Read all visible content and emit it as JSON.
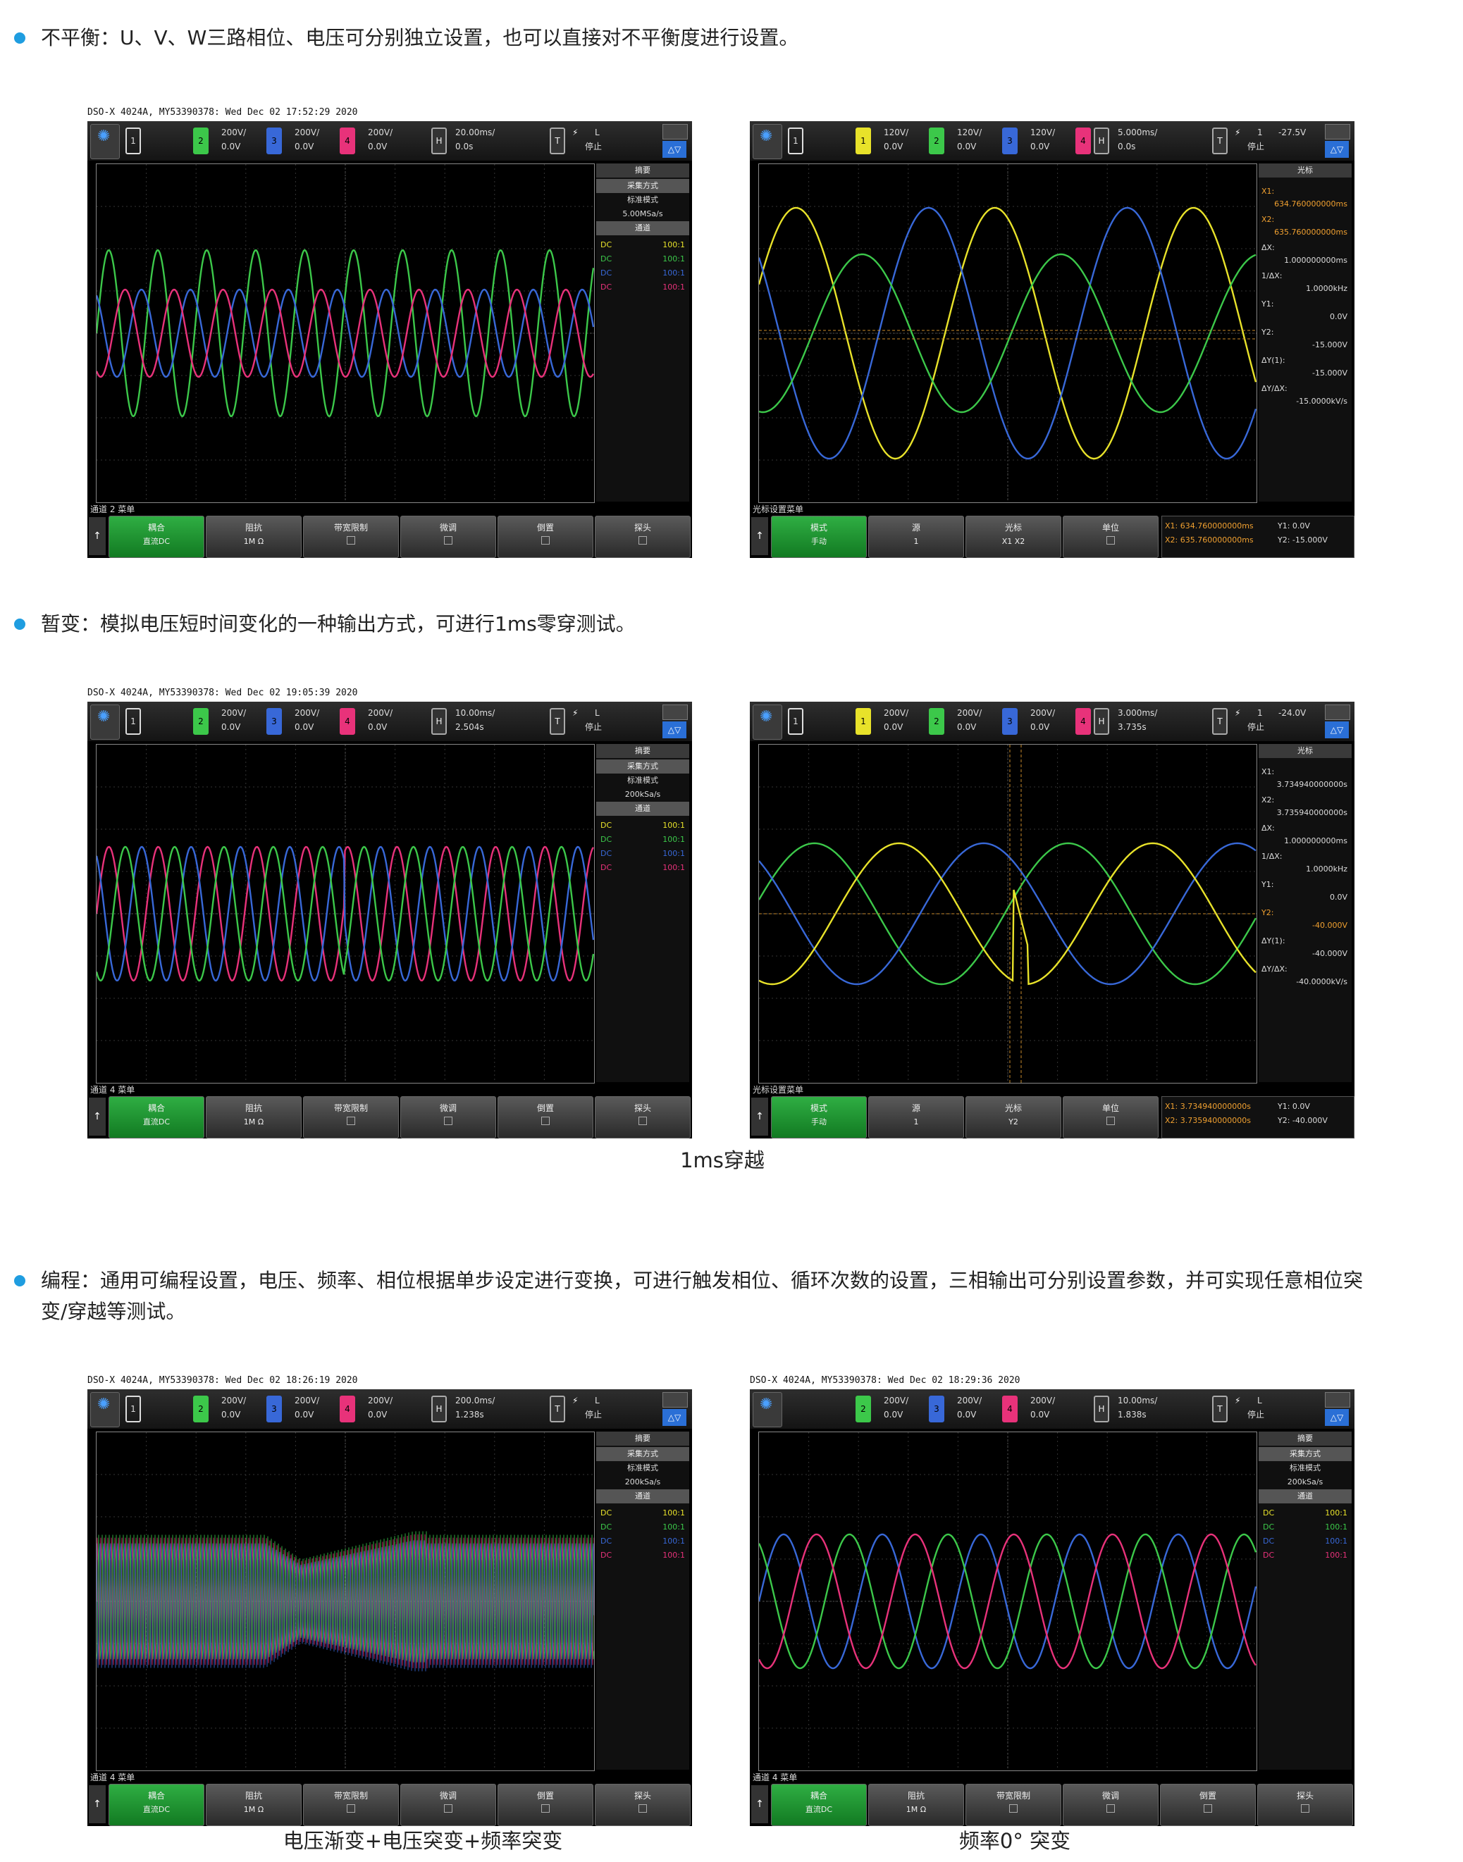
{
  "sections": [
    {
      "bullet": "不平衡：U、V、W三路相位、电压可分别独立设置，也可以直接对不平衡度进行设置。"
    },
    {
      "bullet": "暂变：模拟电压短时间变化的一种输出方式，可进行1ms零穿测试。",
      "caption": "1ms穿越"
    },
    {
      "bullet_line1": "编程：通用可编程设置，电压、频率、相位根据单步设定进行变换，可进行触发相位、循环次数的设置，三相输出可分别设置参数，并可实现任意相位突",
      "bullet_line2": "变/穿越等测试。",
      "caption_left": "电压渐变+电压突变+频率突变",
      "caption_right": "频率0° 突变"
    }
  ],
  "colors": {
    "yellow": "#e8e22a",
    "green": "#3cc84a",
    "blue": "#3868d8",
    "pink": "#e8327a",
    "bullet": "#1f9de0"
  },
  "scopes": [
    {
      "header": "DSO-X 4024A, MY53390378: Wed Dec 02 17:52:29 2020",
      "ch_first": "1",
      "channels": [
        {
          "num": "2",
          "scale": "200V/",
          "offset": "0.0V"
        },
        {
          "num": "3",
          "scale": "200V/",
          "offset": "0.0V"
        },
        {
          "num": "4",
          "scale": "200V/",
          "offset": "0.0V"
        }
      ],
      "timebase": {
        "scale": "20.00ms/",
        "offset": "0.0s"
      },
      "trig": {
        "t": "T",
        "mode": "L",
        "state": "停止"
      },
      "side_title": "摘要",
      "acq": [
        "采集方式",
        "标准模式",
        "5.00MSa/s",
        "通道"
      ],
      "dc": [
        {
          "label": "DC",
          "ratio": "100:1"
        },
        {
          "label": "DC",
          "ratio": "100:1"
        },
        {
          "label": "DC",
          "ratio": "100:1"
        },
        {
          "label": "DC",
          "ratio": "100:1"
        }
      ],
      "status": "通道 2 菜单",
      "buttons": [
        {
          "l1": "耦合",
          "l2": "直流DC"
        },
        {
          "l1": "阻抗",
          "l2": "1M Ω"
        },
        {
          "l1": "带宽限制",
          "l2": ""
        },
        {
          "l1": "微调",
          "l2": ""
        },
        {
          "l1": "倒置",
          "l2": ""
        },
        {
          "l1": "探头",
          "l2": ""
        }
      ]
    },
    {
      "header": "",
      "ch_first": "1",
      "channels": [
        {
          "num": "1",
          "scale": "120V/",
          "offset": "0.0V"
        },
        {
          "num": "2",
          "scale": "120V/",
          "offset": "0.0V"
        },
        {
          "num": "3",
          "scale": "120V/",
          "offset": "0.0V"
        },
        {
          "num": "4",
          "scale": "",
          "offset": ""
        }
      ],
      "timebase": {
        "scale": "5.000ms/",
        "offset": "0.0s"
      },
      "trig": {
        "t": "T",
        "mode": "1",
        "level": "-27.5V",
        "state": "停止"
      },
      "side_title": "光标",
      "cursors": [
        {
          "k": "X1:",
          "v": "634.760000000ms",
          "c": "orange"
        },
        {
          "k": "X2:",
          "v": "635.760000000ms",
          "c": "orange"
        },
        {
          "k": "ΔX:",
          "v": "1.000000000ms",
          "c": "white"
        },
        {
          "k": "1/ΔX:",
          "v": "1.0000kHz",
          "c": "white"
        },
        {
          "k": "Y1:",
          "v": "0.0V",
          "c": "white"
        },
        {
          "k": "Y2:",
          "v": "-15.000V",
          "c": "white"
        },
        {
          "k": "ΔY(1):",
          "v": "-15.000V",
          "c": "white"
        },
        {
          "k": "ΔY/ΔX:",
          "v": "-15.0000kV/s",
          "c": "white"
        }
      ],
      "status": "光标设置菜单",
      "buttons": [
        {
          "l1": "模式",
          "l2": "手动"
        },
        {
          "l1": "源",
          "l2": "1"
        },
        {
          "l1": "光标",
          "l2": "X1 X2"
        },
        {
          "l1": "单位",
          "l2": ""
        }
      ],
      "readout": {
        "x1": "X1: 634.760000000ms",
        "x2": "X2: 635.760000000ms",
        "y1": "Y1: 0.0V",
        "y2": "Y2: -15.000V"
      }
    },
    {
      "header": "DSO-X 4024A, MY53390378: Wed Dec 02 19:05:39 2020",
      "ch_first": "1",
      "channels": [
        {
          "num": "2",
          "scale": "200V/",
          "offset": "0.0V"
        },
        {
          "num": "3",
          "scale": "200V/",
          "offset": "0.0V"
        },
        {
          "num": "4",
          "scale": "200V/",
          "offset": "0.0V"
        }
      ],
      "timebase": {
        "scale": "10.00ms/",
        "offset": "2.504s"
      },
      "trig": {
        "t": "T",
        "mode": "L",
        "state": "停止"
      },
      "side_title": "摘要",
      "acq": [
        "采集方式",
        "标准模式",
        "200kSa/s",
        "通道"
      ],
      "dc": [
        {
          "label": "DC",
          "ratio": "100:1"
        },
        {
          "label": "DC",
          "ratio": "100:1"
        },
        {
          "label": "DC",
          "ratio": "100:1"
        },
        {
          "label": "DC",
          "ratio": "100:1"
        }
      ],
      "status": "通道 4 菜单",
      "buttons": [
        {
          "l1": "耦合",
          "l2": "直流DC"
        },
        {
          "l1": "阻抗",
          "l2": "1M Ω"
        },
        {
          "l1": "带宽限制",
          "l2": ""
        },
        {
          "l1": "微调",
          "l2": ""
        },
        {
          "l1": "倒置",
          "l2": ""
        },
        {
          "l1": "探头",
          "l2": ""
        }
      ]
    },
    {
      "header": "",
      "ch_first": "1",
      "channels": [
        {
          "num": "1",
          "scale": "200V/",
          "offset": "0.0V"
        },
        {
          "num": "2",
          "scale": "200V/",
          "offset": "0.0V"
        },
        {
          "num": "3",
          "scale": "200V/",
          "offset": "0.0V"
        },
        {
          "num": "4",
          "scale": "",
          "offset": ""
        }
      ],
      "timebase": {
        "scale": "3.000ms/",
        "offset": "3.735s"
      },
      "trig": {
        "t": "T",
        "mode": "1",
        "level": "-24.0V",
        "state": "停止"
      },
      "side_title": "光标",
      "cursors": [
        {
          "k": "X1:",
          "v": "3.734940000000s",
          "c": "white"
        },
        {
          "k": "X2:",
          "v": "3.735940000000s",
          "c": "white"
        },
        {
          "k": "ΔX:",
          "v": "1.000000000ms",
          "c": "white"
        },
        {
          "k": "1/ΔX:",
          "v": "1.0000kHz",
          "c": "white"
        },
        {
          "k": "Y1:",
          "v": "0.0V",
          "c": "white"
        },
        {
          "k": "Y2:",
          "v": "-40.000V",
          "c": "orange"
        },
        {
          "k": "ΔY(1):",
          "v": "-40.000V",
          "c": "white"
        },
        {
          "k": "ΔY/ΔX:",
          "v": "-40.0000kV/s",
          "c": "white"
        }
      ],
      "status": "光标设置菜单",
      "buttons": [
        {
          "l1": "模式",
          "l2": "手动"
        },
        {
          "l1": "源",
          "l2": "1"
        },
        {
          "l1": "光标",
          "l2": "Y2"
        },
        {
          "l1": "单位",
          "l2": ""
        }
      ],
      "readout": {
        "x1": "X1: 3.734940000000s",
        "x2": "X2: 3.735940000000s",
        "y1": "Y1: 0.0V",
        "y2": "Y2: -40.000V"
      }
    },
    {
      "header": "DSO-X 4024A, MY53390378: Wed Dec 02 18:26:19 2020",
      "ch_first": "1",
      "channels": [
        {
          "num": "2",
          "scale": "200V/",
          "offset": "0.0V"
        },
        {
          "num": "3",
          "scale": "200V/",
          "offset": "0.0V"
        },
        {
          "num": "4",
          "scale": "200V/",
          "offset": "0.0V"
        }
      ],
      "timebase": {
        "scale": "200.0ms/",
        "offset": "1.238s"
      },
      "trig": {
        "t": "T",
        "mode": "L",
        "state": "停止"
      },
      "side_title": "摘要",
      "acq": [
        "采集方式",
        "标准模式",
        "200kSa/s",
        "通道"
      ],
      "dc": [
        {
          "label": "DC",
          "ratio": "100:1"
        },
        {
          "label": "DC",
          "ratio": "100:1"
        },
        {
          "label": "DC",
          "ratio": "100:1"
        },
        {
          "label": "DC",
          "ratio": "100:1"
        }
      ],
      "status": "通道 4 菜单",
      "buttons": [
        {
          "l1": "耦合",
          "l2": "直流DC"
        },
        {
          "l1": "阻抗",
          "l2": "1M Ω"
        },
        {
          "l1": "带宽限制",
          "l2": ""
        },
        {
          "l1": "微调",
          "l2": ""
        },
        {
          "l1": "倒置",
          "l2": ""
        },
        {
          "l1": "探头",
          "l2": ""
        }
      ]
    },
    {
      "header": "DSO-X 4024A, MY53390378: Wed Dec 02 18:29:36 2020",
      "ch_first": "",
      "channels": [
        {
          "num": "2",
          "scale": "200V/",
          "offset": "0.0V"
        },
        {
          "num": "3",
          "scale": "200V/",
          "offset": "0.0V"
        },
        {
          "num": "4",
          "scale": "200V/",
          "offset": "0.0V"
        }
      ],
      "timebase": {
        "scale": "10.00ms/",
        "offset": "1.838s"
      },
      "trig": {
        "t": "T",
        "mode": "L",
        "state": "停止"
      },
      "side_title": "摘要",
      "acq": [
        "采集方式",
        "标准模式",
        "200kSa/s",
        "通道"
      ],
      "dc": [
        {
          "label": "DC",
          "ratio": "100:1"
        },
        {
          "label": "DC",
          "ratio": "100:1"
        },
        {
          "label": "DC",
          "ratio": "100:1"
        },
        {
          "label": "DC",
          "ratio": "100:1"
        }
      ],
      "status": "通道 4 菜单",
      "buttons": [
        {
          "l1": "耦合",
          "l2": "直流DC"
        },
        {
          "l1": "阻抗",
          "l2": "1M Ω"
        },
        {
          "l1": "带宽限制",
          "l2": ""
        },
        {
          "l1": "微调",
          "l2": ""
        },
        {
          "l1": "倒置",
          "l2": ""
        },
        {
          "l1": "探头",
          "l2": ""
        }
      ]
    }
  ]
}
